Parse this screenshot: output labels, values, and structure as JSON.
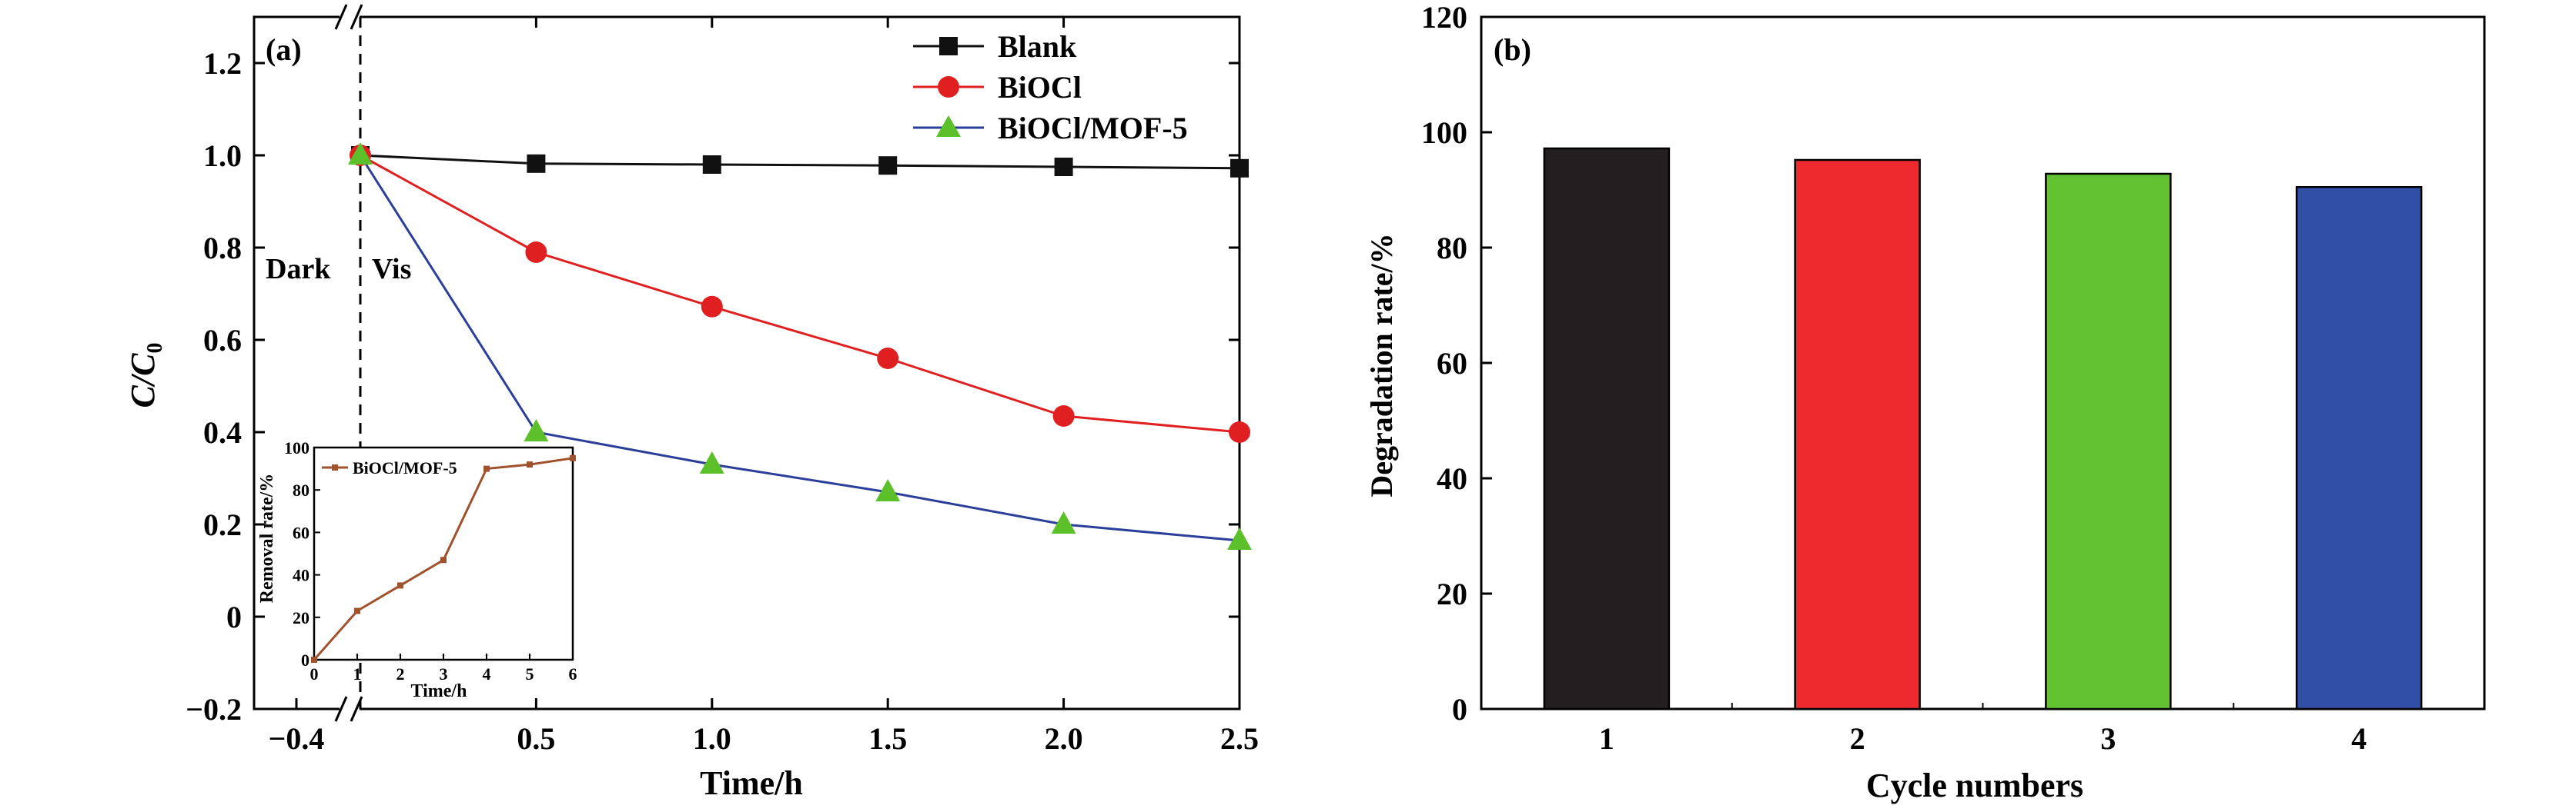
{
  "colors": {
    "blank": "#111111",
    "bioc": "#e02020",
    "mof": "#2b3f9a",
    "mof_marker": "#5cc02a",
    "inset": "#a0522d",
    "bar1": "#231f20",
    "bar2": "#ee2a2e",
    "bar3": "#62c232",
    "bar4": "#3050a8"
  },
  "chart_data": [
    {
      "type": "line",
      "panel_label": "(a)",
      "xlabel": "Time/h",
      "ylabel_main": "C",
      "ylabel_den": "C",
      "ylabel_sub": "0",
      "x_tick_labels": [
        "−0.4",
        "0.5",
        "1.0",
        "1.5",
        "2.0",
        "2.5"
      ],
      "x_ticks": [
        0.5,
        1.0,
        1.5,
        2.0,
        2.5
      ],
      "x_break_tick": -0.4,
      "xlim": [
        -0.75,
        2.5
      ],
      "y_ticks": [
        -0.2,
        0,
        0.2,
        0.4,
        0.6,
        0.8,
        1.0,
        1.2
      ],
      "y_tick_labels": [
        "−0.2",
        "0",
        "0.2",
        "0.4",
        "0.6",
        "0.8",
        "1.0",
        "1.2"
      ],
      "ylim": [
        -0.2,
        1.3
      ],
      "annotations": {
        "dark": "Dark",
        "vis": "Vis"
      },
      "divider_x": 0.0,
      "legend_position": "top-right",
      "series": [
        {
          "name": "Blank",
          "marker": "square",
          "x": [
            0,
            0.5,
            1.0,
            1.5,
            2.0,
            2.5
          ],
          "y": [
            1.0,
            0.982,
            0.98,
            0.978,
            0.975,
            0.972
          ]
        },
        {
          "name": "BiOCl",
          "marker": "circle",
          "x": [
            0,
            0.5,
            1.0,
            1.5,
            2.0,
            2.5
          ],
          "y": [
            1.0,
            0.79,
            0.672,
            0.56,
            0.435,
            0.4
          ]
        },
        {
          "name": "BiOCl/MOF-5",
          "marker": "triangle",
          "x": [
            0,
            0.5,
            1.0,
            1.5,
            2.0,
            2.5
          ],
          "y": [
            1.0,
            0.4,
            0.33,
            0.27,
            0.2,
            0.165
          ]
        }
      ],
      "inset": {
        "type": "line",
        "xlabel": "Time/h",
        "ylabel": "Removal rate/%",
        "x_ticks": [
          0,
          1,
          2,
          3,
          4,
          5,
          6
        ],
        "y_ticks": [
          0,
          20,
          40,
          60,
          80,
          100
        ],
        "xlim": [
          0,
          6
        ],
        "ylim": [
          0,
          100
        ],
        "series": [
          {
            "name": "BiOCl/MOF-5",
            "x": [
              0,
              1,
              2,
              3,
              4,
              5,
              6
            ],
            "y": [
              0,
              23,
              35,
              47,
              90,
              92,
              95
            ]
          }
        ]
      }
    },
    {
      "type": "bar",
      "panel_label": "(b)",
      "xlabel": "Cycle numbers",
      "ylabel": "Degradation rate/%",
      "categories": [
        "1",
        "2",
        "3",
        "4"
      ],
      "values": [
        97.2,
        95.2,
        92.8,
        90.5
      ],
      "ylim": [
        0,
        120
      ],
      "y_ticks": [
        0,
        20,
        40,
        60,
        80,
        100,
        120
      ]
    }
  ]
}
